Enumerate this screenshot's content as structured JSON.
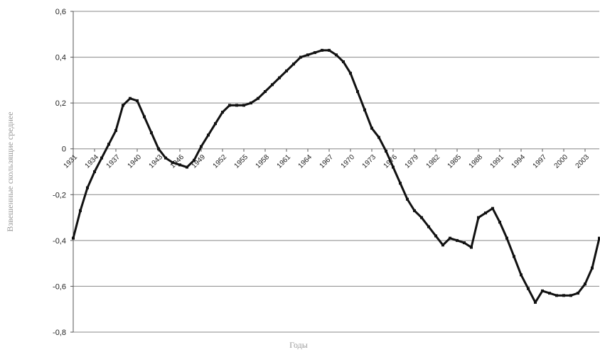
{
  "chart_data": {
    "type": "line",
    "y_label": "Взвешенные скользящие среднее",
    "x_label": "Годы",
    "x": [
      1931,
      1932,
      1933,
      1934,
      1935,
      1936,
      1937,
      1938,
      1939,
      1940,
      1941,
      1942,
      1943,
      1944,
      1945,
      1946,
      1947,
      1948,
      1949,
      1950,
      1951,
      1952,
      1953,
      1954,
      1955,
      1956,
      1957,
      1958,
      1959,
      1960,
      1961,
      1962,
      1963,
      1964,
      1965,
      1966,
      1967,
      1968,
      1969,
      1970,
      1971,
      1972,
      1973,
      1974,
      1975,
      1976,
      1977,
      1978,
      1979,
      1980,
      1981,
      1982,
      1983,
      1984,
      1985,
      1986,
      1987,
      1988,
      1989,
      1990,
      1991,
      1992,
      1993,
      1994,
      1995,
      1996,
      1997,
      1998,
      1999,
      2000,
      2001,
      2002,
      2003,
      2004,
      2005
    ],
    "series": [
      {
        "color": "#111111",
        "values": [
          -0.39,
          -0.27,
          -0.17,
          -0.1,
          -0.04,
          0.02,
          0.08,
          0.19,
          0.22,
          0.21,
          0.14,
          0.07,
          0.0,
          -0.04,
          -0.06,
          -0.07,
          -0.08,
          -0.05,
          0.01,
          0.06,
          0.11,
          0.16,
          0.19,
          0.19,
          0.19,
          0.2,
          0.22,
          0.25,
          0.28,
          0.31,
          0.34,
          0.37,
          0.4,
          0.41,
          0.42,
          0.43,
          0.43,
          0.41,
          0.38,
          0.33,
          0.25,
          0.17,
          0.09,
          0.05,
          -0.01,
          -0.08,
          -0.15,
          -0.22,
          -0.27,
          -0.3,
          -0.34,
          -0.38,
          -0.42,
          -0.39,
          -0.4,
          -0.41,
          -0.43,
          -0.3,
          -0.28,
          -0.26,
          -0.32,
          -0.39,
          -0.47,
          -0.55,
          -0.61,
          -0.67,
          -0.62,
          -0.63,
          -0.64,
          -0.64,
          -0.64,
          -0.63,
          -0.59,
          -0.52,
          -0.39
        ]
      }
    ],
    "xlim": [
      1931,
      2005
    ],
    "xticks": [
      1931,
      1934,
      1937,
      1940,
      1943,
      1946,
      1949,
      1952,
      1955,
      1958,
      1961,
      1964,
      1967,
      1970,
      1973,
      1976,
      1979,
      1982,
      1985,
      1988,
      1991,
      1994,
      1997,
      2000,
      2003
    ],
    "ylim": [
      -0.8,
      0.6
    ],
    "yticks": [
      {
        "value": -0.8,
        "label": "-0,8"
      },
      {
        "value": -0.6,
        "label": "-0,6"
      },
      {
        "value": -0.4,
        "label": "-0,4"
      },
      {
        "value": -0.2,
        "label": "-0,2"
      },
      0,
      {
        "value": 0.2,
        "label": "0,2"
      },
      {
        "value": 0.4,
        "label": "0,4"
      },
      {
        "value": 0.6,
        "label": "0,6"
      }
    ],
    "grid": true
  }
}
